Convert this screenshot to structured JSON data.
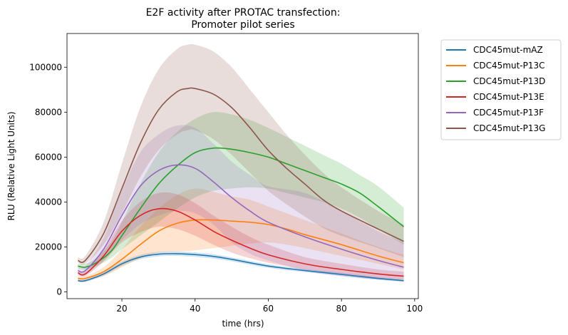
{
  "chart_data": {
    "type": "line",
    "title": "E2F activity after PROTAC transfection:",
    "subtitle": "Promoter pilot series",
    "xlabel": "time (hrs)",
    "ylabel": "RLU (Relative Light Units)",
    "xlim": [
      5,
      101
    ],
    "ylim": [
      -3000,
      115000
    ],
    "xticks": [
      20,
      40,
      60,
      80,
      100
    ],
    "yticks": [
      0,
      20000,
      40000,
      60000,
      80000,
      100000
    ],
    "grid": false,
    "legend_placement": "outside-top-right",
    "shaded_band": "spread around each series",
    "series": [
      {
        "name": "CDC45mut-mAZ",
        "color": "#1f77b4",
        "x": [
          8,
          10,
          15,
          20,
          25,
          30,
          35,
          40,
          45,
          50,
          60,
          70,
          80,
          90,
          97
        ],
        "y": [
          5000,
          5000,
          8000,
          12500,
          15500,
          16800,
          17000,
          16600,
          15800,
          14500,
          11500,
          9500,
          7800,
          6000,
          5000
        ],
        "lower": [
          4600,
          4500,
          7200,
          11500,
          14500,
          15800,
          16000,
          15600,
          14800,
          13600,
          10700,
          8800,
          7100,
          5400,
          4500
        ],
        "upper": [
          5500,
          5600,
          8800,
          13500,
          16500,
          17800,
          18000,
          17600,
          16800,
          15400,
          12300,
          10200,
          8500,
          6600,
          5600
        ]
      },
      {
        "name": "CDC45mut-P13C",
        "color": "#ff7f0e",
        "x": [
          8,
          10,
          15,
          20,
          25,
          30,
          35,
          40,
          45,
          50,
          55,
          60,
          65,
          70,
          80,
          90,
          97
        ],
        "y": [
          6000,
          6000,
          9000,
          14500,
          21000,
          27000,
          30500,
          32000,
          32000,
          31500,
          31000,
          30000,
          28000,
          25500,
          21000,
          16000,
          13000
        ],
        "lower": [
          5000,
          5000,
          7000,
          11000,
          15000,
          17500,
          18000,
          18500,
          19500,
          20500,
          21500,
          22000,
          21000,
          19500,
          16000,
          12500,
          10000
        ],
        "upper": [
          7000,
          7000,
          11000,
          19000,
          29000,
          37000,
          43000,
          46000,
          44500,
          42500,
          41000,
          38000,
          35000,
          32000,
          26000,
          20000,
          16500
        ]
      },
      {
        "name": "CDC45mut-P13D",
        "color": "#2ca02c",
        "x": [
          8,
          10,
          13,
          17,
          20,
          25,
          30,
          35,
          40,
          45,
          50,
          55,
          60,
          65,
          70,
          75,
          80,
          85,
          90,
          97
        ],
        "y": [
          11500,
          11000,
          13000,
          18000,
          25000,
          37000,
          48000,
          56000,
          62000,
          64000,
          63500,
          62000,
          60000,
          57000,
          54000,
          51000,
          48000,
          44000,
          38000,
          29000
        ],
        "lower": [
          10500,
          10000,
          11500,
          15000,
          19000,
          25000,
          31000,
          37000,
          42000,
          45000,
          46000,
          46500,
          46000,
          44000,
          42000,
          40000,
          37000,
          33000,
          28000,
          21000
        ],
        "upper": [
          12500,
          12500,
          15000,
          22000,
          31000,
          48000,
          62000,
          71000,
          77000,
          80000,
          79000,
          76500,
          73000,
          69000,
          65000,
          61000,
          57000,
          52000,
          47000,
          37500
        ]
      },
      {
        "name": "CDC45mut-P13E",
        "color": "#d62728",
        "x": [
          8,
          10,
          15,
          20,
          25,
          30,
          35,
          40,
          45,
          50,
          55,
          60,
          70,
          80,
          90,
          97
        ],
        "y": [
          8500,
          8000,
          16000,
          27000,
          34000,
          37000,
          36000,
          32000,
          27000,
          23000,
          19500,
          16500,
          12500,
          10000,
          8000,
          7000
        ],
        "lower": [
          7500,
          7000,
          13500,
          22000,
          26500,
          29000,
          28000,
          25000,
          21000,
          17500,
          15000,
          13000,
          10000,
          8000,
          6300,
          5500
        ],
        "upper": [
          9500,
          9500,
          18500,
          31500,
          40000,
          44000,
          43500,
          39500,
          34000,
          29000,
          24500,
          21000,
          15500,
          12500,
          10000,
          9000
        ]
      },
      {
        "name": "CDC45mut-P13F",
        "color": "#9467bd",
        "x": [
          8,
          10,
          15,
          20,
          25,
          30,
          35,
          40,
          45,
          50,
          55,
          60,
          70,
          80,
          90,
          97
        ],
        "y": [
          9500,
          9500,
          19000,
          34000,
          47000,
          54000,
          56500,
          55000,
          49000,
          42000,
          36000,
          31000,
          24500,
          19000,
          14000,
          11000
        ],
        "lower": [
          8000,
          7500,
          14000,
          23000,
          30000,
          34000,
          36000,
          35000,
          30000,
          22000,
          17000,
          14000,
          9500,
          7000,
          5500,
          5000
        ],
        "upper": [
          11000,
          11500,
          24000,
          45000,
          62000,
          70000,
          74000,
          73000,
          66000,
          58000,
          52000,
          47000,
          44000,
          36000,
          27000,
          22000
        ]
      },
      {
        "name": "CDC45mut-P13G",
        "color": "#8c564b",
        "x": [
          8,
          10,
          15,
          20,
          25,
          30,
          35,
          38,
          40,
          45,
          50,
          55,
          60,
          65,
          70,
          75,
          80,
          90,
          97
        ],
        "y": [
          14000,
          14000,
          26000,
          46000,
          66000,
          81000,
          89000,
          90500,
          90500,
          88000,
          82000,
          73000,
          63000,
          55000,
          48000,
          41000,
          36000,
          28000,
          22500
        ],
        "lower": [
          13000,
          12500,
          21000,
          35000,
          51000,
          63000,
          70000,
          72000,
          72000,
          68000,
          61000,
          53000,
          45000,
          39000,
          33500,
          28500,
          25000,
          19500,
          15500
        ],
        "upper": [
          15500,
          16000,
          31000,
          57000,
          82000,
          99000,
          108000,
          110000,
          110000,
          107000,
          100000,
          90000,
          80000,
          70000,
          61000,
          53000,
          46500,
          36000,
          30000
        ]
      }
    ]
  }
}
